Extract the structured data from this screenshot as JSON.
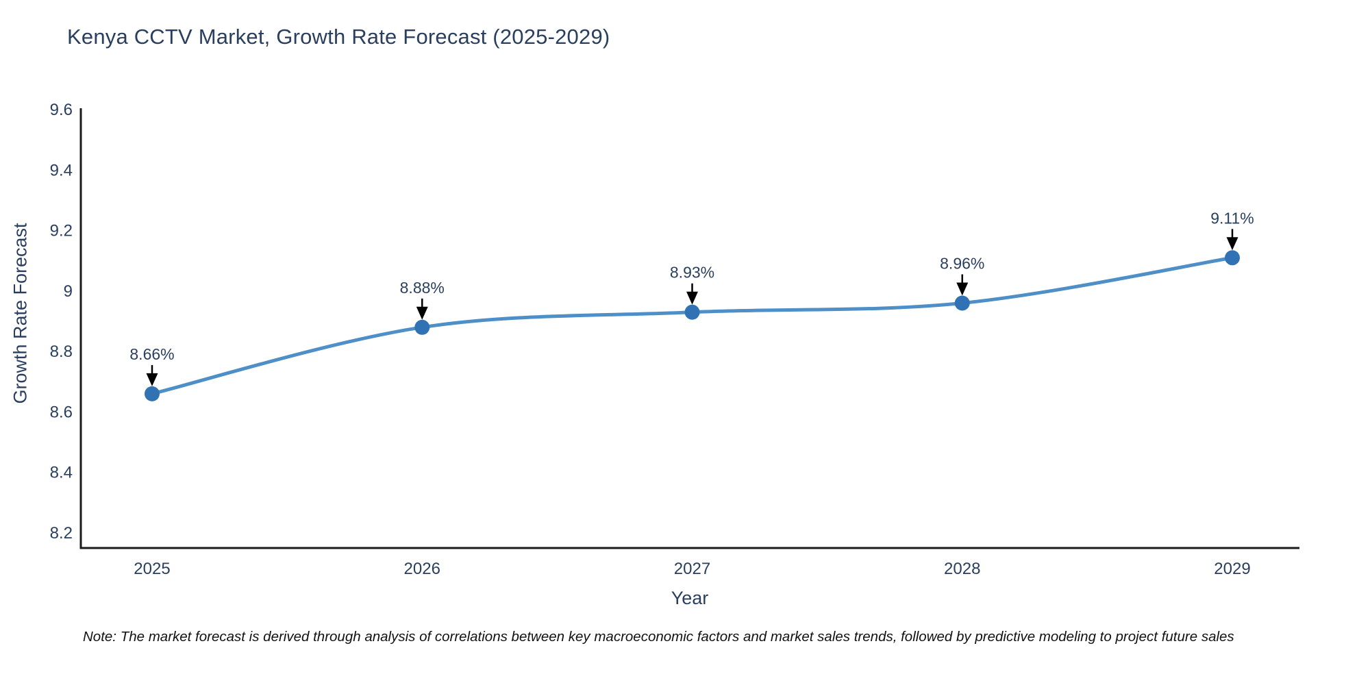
{
  "chart_data": {
    "type": "line",
    "title": "Kenya CCTV Market, Growth Rate Forecast (2025-2029)",
    "xlabel": "Year",
    "ylabel": "Growth Rate Forecast",
    "categories": [
      "2025",
      "2026",
      "2027",
      "2028",
      "2029"
    ],
    "series": [
      {
        "name": "Growth Rate Forecast",
        "values": [
          8.66,
          8.88,
          8.93,
          8.96,
          9.11
        ]
      }
    ],
    "point_labels": [
      "8.66%",
      "8.88%",
      "8.93%",
      "8.96%",
      "9.11%"
    ],
    "ylim": [
      8.15,
      9.6
    ],
    "yticks": [
      8.2,
      8.4,
      8.6,
      8.8,
      9.0,
      9.2,
      9.4,
      9.6
    ],
    "ytick_labels": [
      "8.2",
      "8.4",
      "8.6",
      "8.8",
      "9",
      "9.2",
      "9.4",
      "9.6"
    ],
    "grid": false,
    "legend": "none",
    "line_shape": "spline",
    "colors": {
      "line": "#4e8fc7",
      "marker": "#3172b4",
      "axis": "#1a1a1a",
      "text": "#2a3f5f",
      "arrow": "#000000"
    },
    "note": "Note: The market forecast is derived through analysis of correlations between key macroeconomic factors and market sales trends, followed by predictive modeling to project future sales"
  }
}
